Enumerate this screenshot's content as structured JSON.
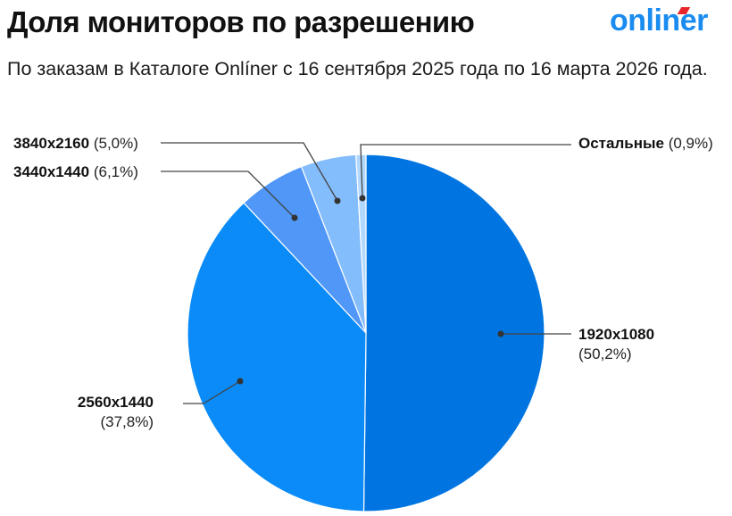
{
  "header": {
    "title": "Доля мониторов по разрешению",
    "subtitle": "По заказам в Каталоге Onlíner с 16 сентября 2025 года по 16 марта 2026 года.",
    "logo_text": "onliner"
  },
  "labels": {
    "l1920": {
      "name": "1920x1080",
      "value": "(50,2%)"
    },
    "l2560": {
      "name": "2560x1440",
      "value": "(37,8%)"
    },
    "l3440": {
      "name": "3440x1440",
      "value": "(6,1%)"
    },
    "l3840": {
      "name": "3840x2160",
      "value": "(5,0%)"
    },
    "lother": {
      "name": "Остальные",
      "value": "(0,9%)"
    }
  },
  "colors": {
    "brand": "#1a8cf0",
    "logo_accent": "#e8262b",
    "slices": [
      "#0075e1",
      "#0a8bf7",
      "#5097f8",
      "#84bdfb",
      "#b3d8fd"
    ]
  },
  "chart_data": {
    "type": "pie",
    "title": "Доля мониторов по разрешению",
    "subtitle": "По заказам в Каталоге Onlíner с 16 сентября 2025 года по 16 марта 2026 года.",
    "categories": [
      "1920x1080",
      "2560x1440",
      "3440x1440",
      "3840x2160",
      "Остальные"
    ],
    "values": [
      50.2,
      37.8,
      6.1,
      5.0,
      0.9
    ],
    "unit": "%",
    "start_angle": "12 o'clock",
    "direction": "clockwise",
    "legend": "callout labels with leader lines"
  }
}
